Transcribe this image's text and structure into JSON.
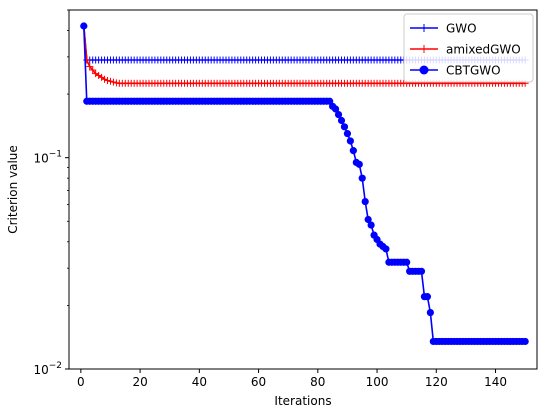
{
  "chart_data": {
    "type": "line",
    "title": "",
    "xlabel": "Iterations",
    "ylabel": "Criterion value",
    "xlim": [
      -4,
      154
    ],
    "ylim": [
      0.01,
      0.5
    ],
    "yscale": "log",
    "xticks": [
      0,
      20,
      40,
      60,
      80,
      100,
      120,
      140
    ],
    "xtick_labels": [
      "0",
      "20",
      "40",
      "60",
      "80",
      "100",
      "120",
      "140"
    ],
    "yticks": [
      0.1,
      0.01
    ],
    "ytick_labels": [
      "10^-1",
      "10^-2"
    ],
    "grid": false,
    "legend_position": "top-right",
    "series": [
      {
        "name": "GWO",
        "color": "#0000ff",
        "marker": "plus",
        "points": [
          [
            1,
            0.42
          ],
          [
            2,
            0.29
          ],
          [
            150,
            0.29
          ]
        ]
      },
      {
        "name": "amixedGWO",
        "color": "#ff0000",
        "marker": "plus",
        "points": [
          [
            1,
            0.42
          ],
          [
            2,
            0.29
          ],
          [
            3,
            0.27
          ],
          [
            4,
            0.26
          ],
          [
            5,
            0.25
          ],
          [
            6,
            0.245
          ],
          [
            7,
            0.24
          ],
          [
            8,
            0.235
          ],
          [
            9,
            0.232
          ],
          [
            10,
            0.23
          ],
          [
            11,
            0.228
          ],
          [
            12,
            0.226
          ],
          [
            13,
            0.225
          ],
          [
            150,
            0.225
          ]
        ]
      },
      {
        "name": "CBTGWO",
        "color": "#0000ff",
        "marker": "circle",
        "points": [
          [
            1,
            0.42
          ],
          [
            2,
            0.185
          ],
          [
            83,
            0.185
          ],
          [
            84,
            0.185
          ],
          [
            85,
            0.175
          ],
          [
            86,
            0.17
          ],
          [
            87,
            0.16
          ],
          [
            88,
            0.15
          ],
          [
            89,
            0.14
          ],
          [
            90,
            0.13
          ],
          [
            91,
            0.12
          ],
          [
            92,
            0.108
          ],
          [
            93,
            0.095
          ],
          [
            94,
            0.093
          ],
          [
            95,
            0.08
          ],
          [
            96,
            0.062
          ],
          [
            97,
            0.051
          ],
          [
            98,
            0.048
          ],
          [
            99,
            0.043
          ],
          [
            100,
            0.041
          ],
          [
            101,
            0.039
          ],
          [
            102,
            0.038
          ],
          [
            103,
            0.037
          ],
          [
            104,
            0.032
          ],
          [
            105,
            0.032
          ],
          [
            106,
            0.032
          ],
          [
            107,
            0.032
          ],
          [
            108,
            0.032
          ],
          [
            109,
            0.032
          ],
          [
            110,
            0.032
          ],
          [
            111,
            0.029
          ],
          [
            112,
            0.029
          ],
          [
            113,
            0.029
          ],
          [
            114,
            0.029
          ],
          [
            115,
            0.029
          ],
          [
            116,
            0.022
          ],
          [
            117,
            0.022
          ],
          [
            118,
            0.0185
          ],
          [
            119,
            0.0135
          ],
          [
            150,
            0.0135
          ]
        ]
      }
    ]
  }
}
